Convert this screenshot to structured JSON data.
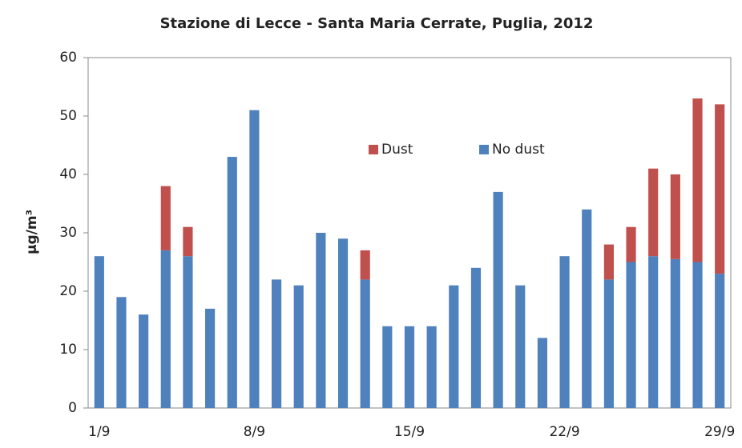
{
  "chart_data": {
    "type": "stacked_bar",
    "title": "Stazione  di Lecce - Santa Maria Cerrate, Puglia, 2012",
    "y_label": "μg/m³",
    "categories": [
      "1/9",
      null,
      null,
      null,
      null,
      null,
      null,
      "8/9",
      null,
      null,
      null,
      null,
      null,
      null,
      "15/9",
      null,
      null,
      null,
      null,
      null,
      null,
      "22/9",
      null,
      null,
      null,
      null,
      null,
      null,
      "29/9"
    ],
    "series": [
      {
        "name": "No dust",
        "color": "#4f81bd",
        "values": [
          26,
          19,
          16,
          27,
          26,
          17,
          43,
          51,
          22,
          21,
          30,
          29,
          22,
          14,
          14,
          14,
          21,
          24,
          37,
          21,
          12,
          26,
          34,
          22,
          25,
          26,
          25.5,
          25,
          23
        ]
      },
      {
        "name": "Dust",
        "color": "#c0504d",
        "values": [
          0,
          0,
          0,
          11,
          5,
          0,
          0,
          0,
          0,
          0,
          0,
          0,
          5,
          0,
          0,
          0,
          0,
          0,
          0,
          0,
          0,
          0,
          0,
          6,
          6,
          15,
          14.5,
          28,
          29
        ]
      }
    ],
    "ylim": [
      0,
      60
    ],
    "yticks": [
      0,
      10,
      20,
      30,
      40,
      50,
      60
    ],
    "grid": false
  }
}
